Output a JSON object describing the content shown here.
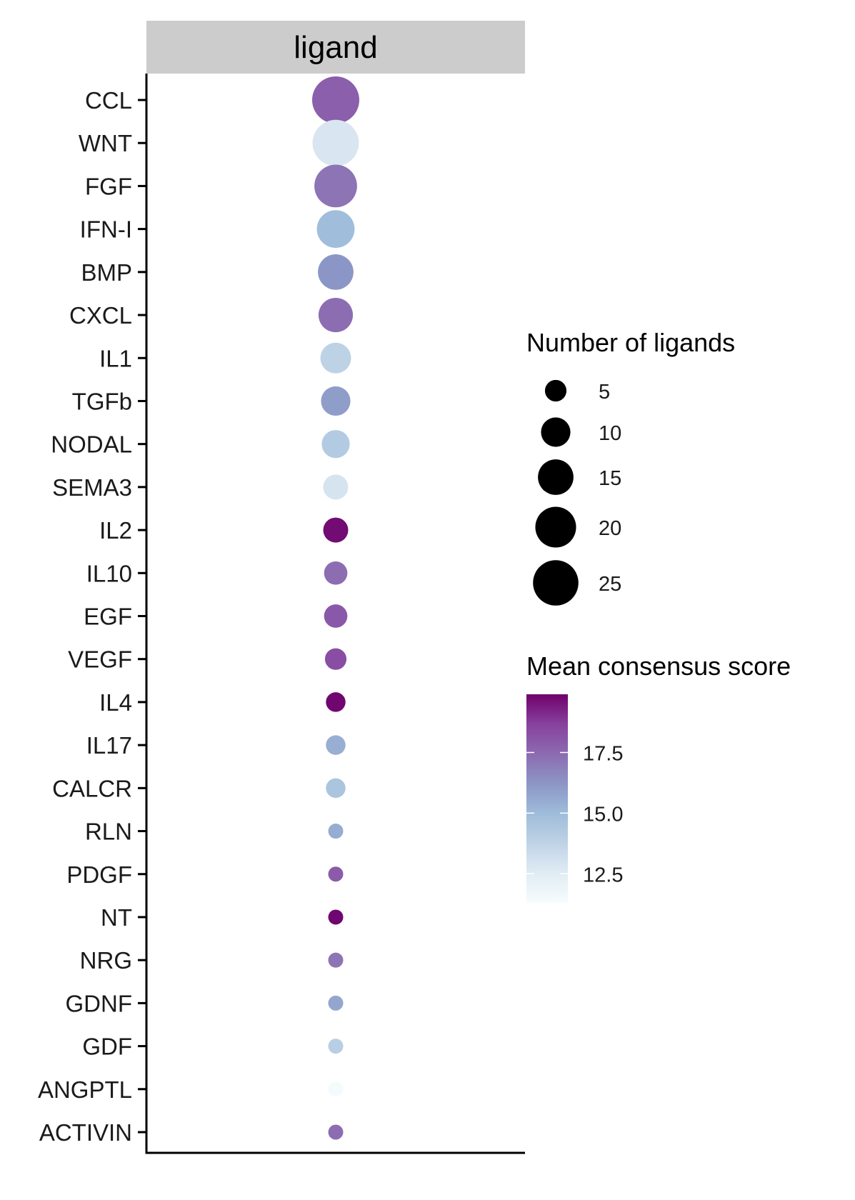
{
  "chart_data": {
    "type": "scatter",
    "facet_label": "ligand",
    "categories": [
      "CCL",
      "WNT",
      "FGF",
      "IFN-I",
      "BMP",
      "CXCL",
      "IL1",
      "TGFb",
      "NODAL",
      "SEMA3",
      "IL2",
      "IL10",
      "EGF",
      "VEGF",
      "IL4",
      "IL17",
      "CALCR",
      "RLN",
      "PDGF",
      "NT",
      "NRG",
      "GDNF",
      "GDF",
      "ANGPTL",
      "ACTIVIN"
    ],
    "points": [
      {
        "category": "CCL",
        "num_ligands": 27,
        "mean_score": 17.8
      },
      {
        "category": "WNT",
        "num_ligands": 26,
        "mean_score": 12.8
      },
      {
        "category": "FGF",
        "num_ligands": 22,
        "mean_score": 17.2
      },
      {
        "category": "IFN-I",
        "num_ligands": 17,
        "mean_score": 14.9
      },
      {
        "category": "BMP",
        "num_ligands": 15,
        "mean_score": 16.2
      },
      {
        "category": "CXCL",
        "num_ligands": 14,
        "mean_score": 17.4
      },
      {
        "category": "IL1",
        "num_ligands": 11,
        "mean_score": 13.8
      },
      {
        "category": "TGFb",
        "num_ligands": 10,
        "mean_score": 16.0
      },
      {
        "category": "NODAL",
        "num_ligands": 9,
        "mean_score": 14.2
      },
      {
        "category": "SEMA3",
        "num_ligands": 7,
        "mean_score": 12.9
      },
      {
        "category": "IL2",
        "num_ligands": 7,
        "mean_score": 19.7
      },
      {
        "category": "IL10",
        "num_ligands": 6,
        "mean_score": 17.4
      },
      {
        "category": "EGF",
        "num_ligands": 6,
        "mean_score": 18.0
      },
      {
        "category": "VEGF",
        "num_ligands": 5,
        "mean_score": 18.3
      },
      {
        "category": "IL4",
        "num_ligands": 4,
        "mean_score": 19.8
      },
      {
        "category": "IL17",
        "num_ligands": 4,
        "mean_score": 15.4
      },
      {
        "category": "CALCR",
        "num_ligands": 4,
        "mean_score": 14.5
      },
      {
        "category": "RLN",
        "num_ligands": 2,
        "mean_score": 15.5
      },
      {
        "category": "PDGF",
        "num_ligands": 2,
        "mean_score": 17.9
      },
      {
        "category": "NT",
        "num_ligands": 2,
        "mean_score": 19.8
      },
      {
        "category": "NRG",
        "num_ligands": 2,
        "mean_score": 17.2
      },
      {
        "category": "GDNF",
        "num_ligands": 2,
        "mean_score": 15.7
      },
      {
        "category": "GDF",
        "num_ligands": 2,
        "mean_score": 14.0
      },
      {
        "category": "ANGPTL",
        "num_ligands": 2,
        "mean_score": 11.4
      },
      {
        "category": "ACTIVIN",
        "num_ligands": 2,
        "mean_score": 17.4
      }
    ],
    "size_legend": {
      "title": "Number of ligands",
      "breaks": [
        5,
        10,
        15,
        20,
        25
      ],
      "labels": [
        "5",
        "10",
        "15",
        "20",
        "25"
      ],
      "range": [
        2,
        27
      ]
    },
    "color_legend": {
      "title": "Mean consensus score",
      "breaks": [
        12.5,
        15.0,
        17.5
      ],
      "labels": [
        "12.5",
        "15.0",
        "17.5"
      ],
      "limits": [
        11.3,
        19.9
      ],
      "palette": [
        "#f7fcfd",
        "#e0ecf4",
        "#bfd3e6",
        "#9ebcda",
        "#8c96c6",
        "#8c6bb1",
        "#88419d",
        "#6e016b"
      ]
    },
    "xlabel": "",
    "ylabel": "",
    "grid": false,
    "legend_position": "right"
  }
}
